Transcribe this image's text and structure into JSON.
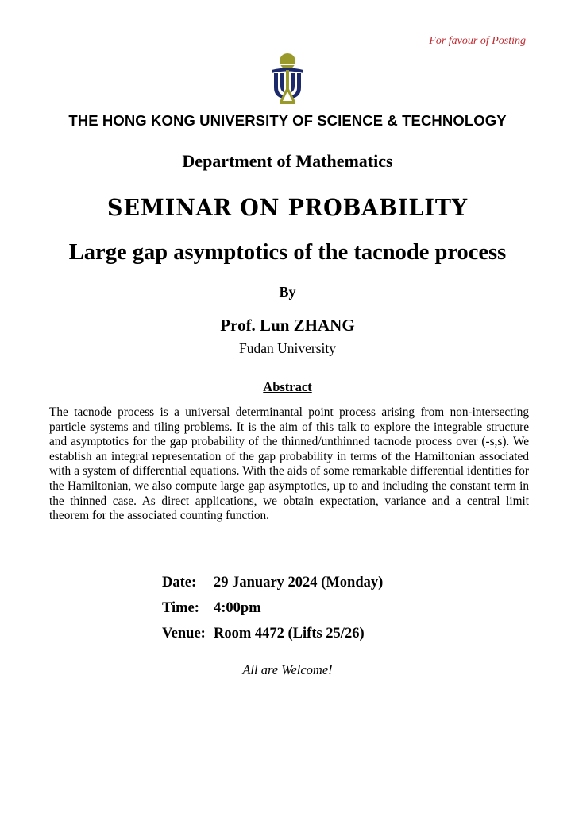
{
  "header": {
    "posting_note": "For favour of Posting",
    "university": "THE HONG KONG UNIVERSITY OF SCIENCE & TECHNOLOGY",
    "logo": "hkust-logo",
    "department": "Department of Mathematics"
  },
  "seminar": {
    "series": "Seminar on Probability",
    "title": "Large gap asymptotics of the tacnode process",
    "by": "By",
    "speaker": "Prof. Lun ZHANG",
    "affiliation": "Fudan University",
    "abstract_heading": "Abstract",
    "abstract": "The tacnode process is a universal determinantal point process arising from non-intersecting particle systems and tiling problems. It is the aim of this talk to explore the integrable structure and asymptotics for the gap probability of the thinned/unthinned tacnode process over (-s,s). We establish an integral representation of the gap probability in terms of the Hamiltonian associated with a system of differential equations. With the aids of some remarkable differential identities for the Hamiltonian, we also compute large gap asymptotics, up to and including the constant term in the thinned case. As direct applications, we obtain expectation, variance and a central limit theorem for the associated counting function."
  },
  "details": [
    {
      "label": "Date:",
      "value": "29 January 2024 (Monday)"
    },
    {
      "label": "Time:",
      "value": "4:00pm"
    },
    {
      "label": "Venue:",
      "value": "Room 4472 (Lifts 25/26)"
    }
  ],
  "footer": {
    "welcome": "All are Welcome!"
  },
  "colors": {
    "posting_note": "#c0272d",
    "logo_navy": "#1c2a6b",
    "logo_olive": "#9a9a2a"
  }
}
